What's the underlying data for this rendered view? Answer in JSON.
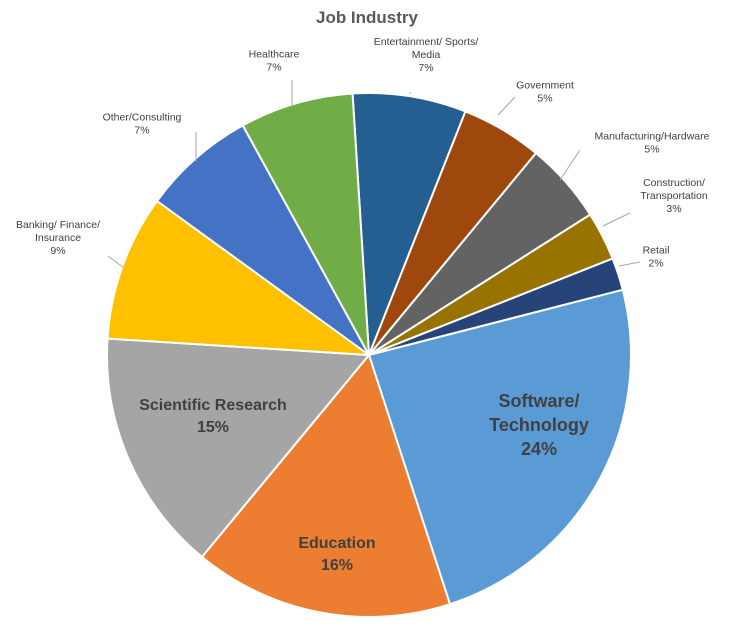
{
  "chart_data": {
    "type": "pie",
    "title": "Job Industry",
    "slices": [
      {
        "label": "Entertainment/ Sports/ Media",
        "lines": [
          "Entertainment/ Sports/",
          "Media",
          "7%"
        ],
        "value": 7,
        "color": "#255e91"
      },
      {
        "label": "Government",
        "lines": [
          "Government",
          "5%"
        ],
        "value": 5,
        "color": "#9e480e"
      },
      {
        "label": "Manufacturing/Hardware",
        "lines": [
          "Manufacturing/Hardware",
          "5%"
        ],
        "value": 5,
        "color": "#636363"
      },
      {
        "label": "Construction/ Transportation",
        "lines": [
          "Construction/",
          "Transportation",
          "3%"
        ],
        "value": 3,
        "color": "#997300"
      },
      {
        "label": "Retail",
        "lines": [
          "Retail",
          "2%"
        ],
        "value": 2,
        "color": "#264478"
      },
      {
        "label": "Software/ Technology",
        "lines": [
          "Software/",
          "Technology",
          "24%"
        ],
        "value": 24,
        "color": "#5b9bd5"
      },
      {
        "label": "Education",
        "lines": [
          "Education",
          "16%"
        ],
        "value": 16,
        "color": "#ed7d31"
      },
      {
        "label": "Scientific Research",
        "lines": [
          "Scientific Research",
          "15%"
        ],
        "value": 15,
        "color": "#a5a5a5"
      },
      {
        "label": "Banking/ Finance/ Insurance",
        "lines": [
          "Banking/ Finance/",
          "Insurance",
          "9%"
        ],
        "value": 9,
        "color": "#ffc000"
      },
      {
        "label": "Other/Consulting",
        "lines": [
          "Other/Consulting",
          "7%"
        ],
        "value": 7,
        "color": "#4472c4"
      },
      {
        "label": "Healthcare",
        "lines": [
          "Healthcare",
          "7%"
        ],
        "value": 7,
        "color": "#70ad47"
      }
    ]
  }
}
